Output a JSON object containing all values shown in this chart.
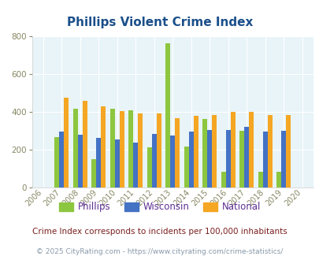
{
  "title": "Phillips Violent Crime Index",
  "years": [
    2006,
    2007,
    2008,
    2009,
    2010,
    2011,
    2012,
    2013,
    2014,
    2015,
    2016,
    2017,
    2018,
    2019,
    2020
  ],
  "phillips": [
    0,
    265,
    415,
    150,
    415,
    410,
    210,
    765,
    215,
    360,
    80,
    300,
    80,
    80,
    0
  ],
  "wisconsin": [
    0,
    295,
    278,
    262,
    252,
    238,
    282,
    275,
    295,
    305,
    305,
    320,
    295,
    298,
    0
  ],
  "national": [
    0,
    475,
    460,
    430,
    403,
    390,
    390,
    365,
    377,
    383,
    400,
    400,
    383,
    383,
    0
  ],
  "phillips_color": "#8dc63f",
  "wisconsin_color": "#4472c4",
  "national_color": "#f5a623",
  "bg_color": "#e8f4f8",
  "title_color": "#1a4f8a",
  "legend_text_color": "#5c2d91",
  "footnote1": "Crime Index corresponds to incidents per 100,000 inhabitants",
  "footnote2": "© 2025 CityRating.com - https://www.cityrating.com/crime-statistics/",
  "footnote1_color": "#7b1f1f",
  "footnote2_color": "#8899aa",
  "ylim": [
    0,
    800
  ],
  "yticks": [
    0,
    200,
    400,
    600,
    800
  ],
  "bar_width": 0.25
}
